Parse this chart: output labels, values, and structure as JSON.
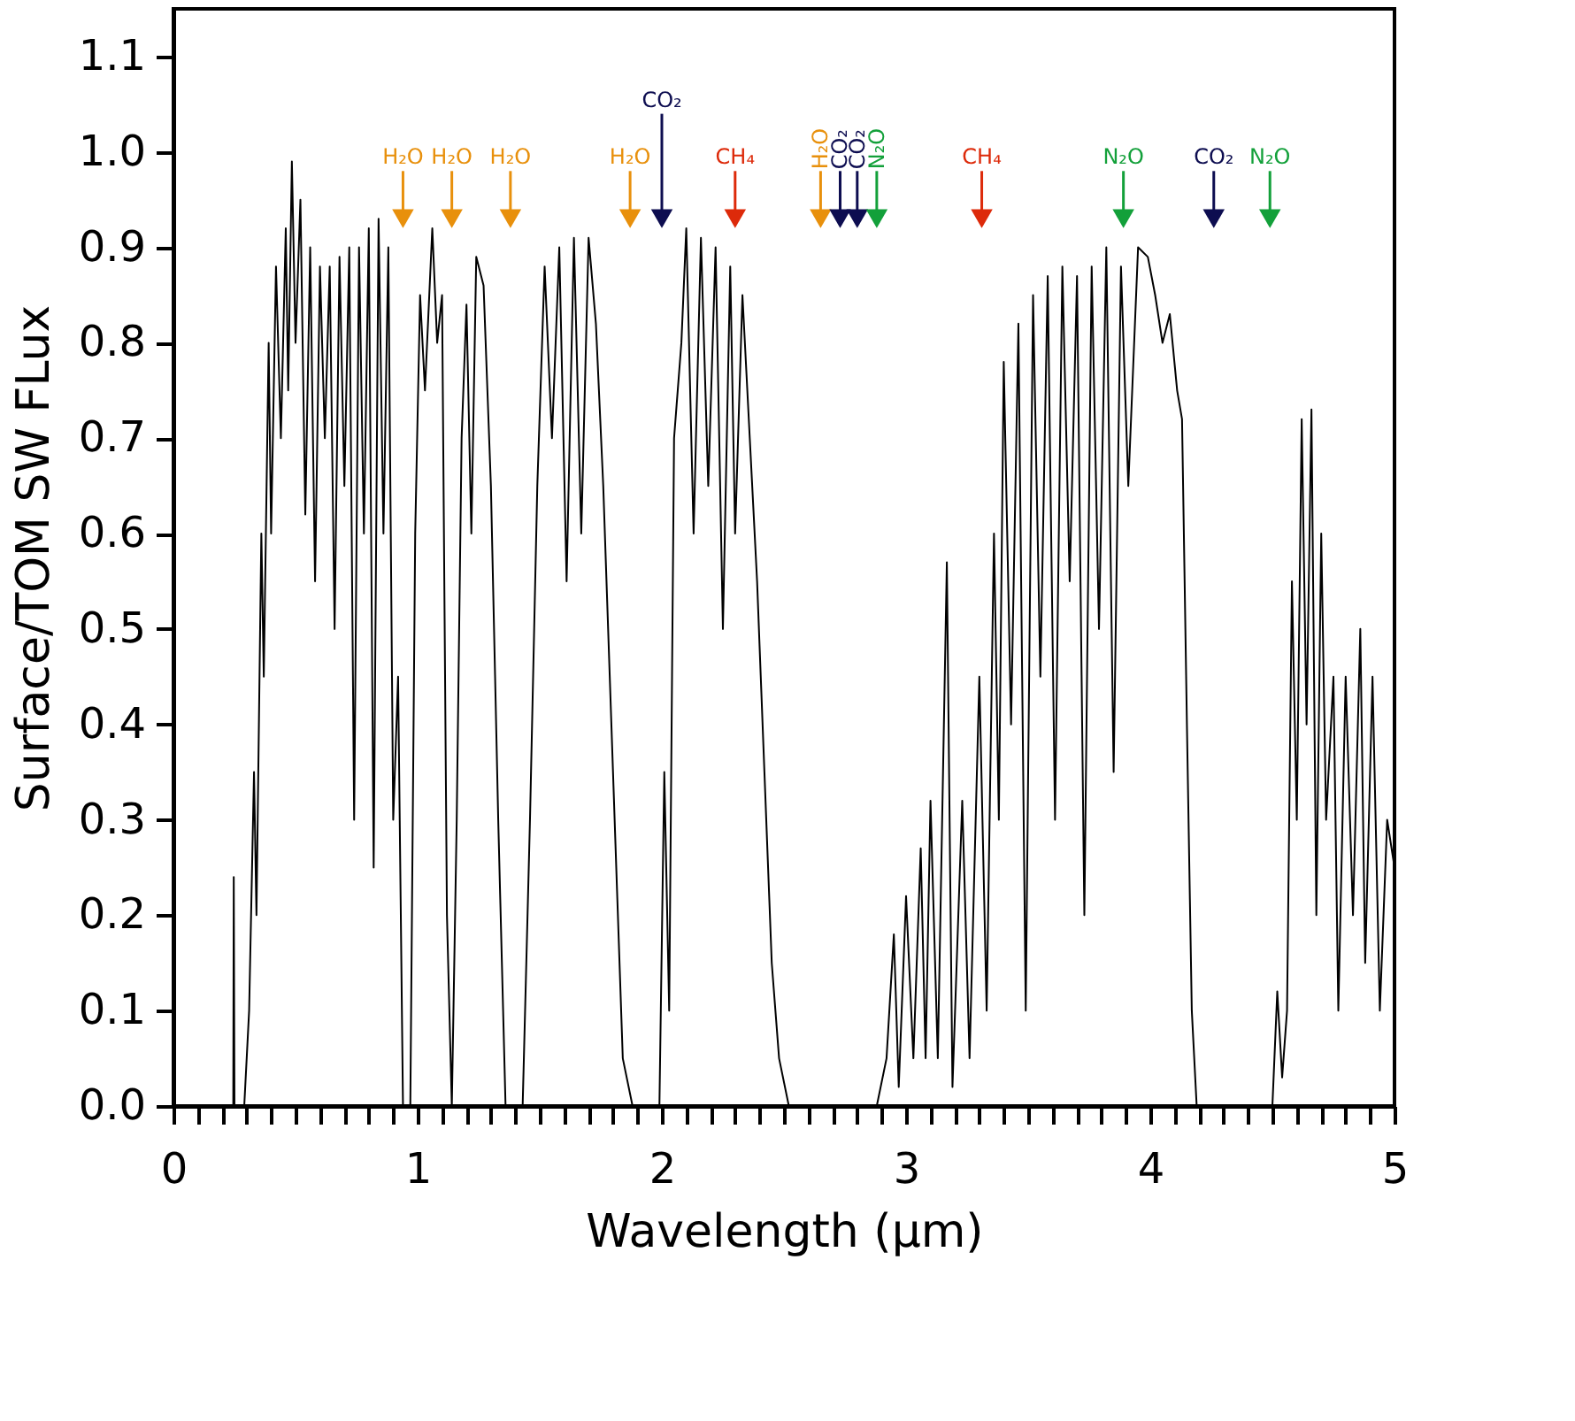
{
  "chart_data": {
    "type": "line",
    "xlabel": "Wavelength (μm)",
    "ylabel": "Surface/TOM SW FLux",
    "xlim": [
      0,
      5
    ],
    "ylim": [
      0,
      1.15
    ],
    "xticks": [
      0,
      {
        "value": 0.1,
        "label": null
      },
      {
        "value": 0.2,
        "label": null
      },
      {
        "value": 0.3,
        "label": null
      },
      {
        "value": 0.4,
        "label": null
      },
      {
        "value": 0.5,
        "label": null
      },
      {
        "value": 0.6,
        "label": null
      },
      {
        "value": 0.7,
        "label": null
      },
      {
        "value": 0.8,
        "label": null
      },
      {
        "value": 0.9,
        "label": null
      },
      1,
      {
        "value": 1.1,
        "label": null
      },
      {
        "value": 1.2,
        "label": null
      },
      {
        "value": 1.3,
        "label": null
      },
      {
        "value": 1.4,
        "label": null
      },
      {
        "value": 1.5,
        "label": null
      },
      {
        "value": 1.6,
        "label": null
      },
      {
        "value": 1.7,
        "label": null
      },
      {
        "value": 1.8,
        "label": null
      },
      {
        "value": 1.9,
        "label": null
      },
      2,
      {
        "value": 2.1,
        "label": null
      },
      {
        "value": 2.2,
        "label": null
      },
      {
        "value": 2.3,
        "label": null
      },
      {
        "value": 2.4,
        "label": null
      },
      {
        "value": 2.5,
        "label": null
      },
      {
        "value": 2.6,
        "label": null
      },
      {
        "value": 2.7,
        "label": null
      },
      {
        "value": 2.8,
        "label": null
      },
      {
        "value": 2.9,
        "label": null
      },
      3,
      {
        "value": 3.1,
        "label": null
      },
      {
        "value": 3.2,
        "label": null
      },
      {
        "value": 3.3,
        "label": null
      },
      {
        "value": 3.4,
        "label": null
      },
      {
        "value": 3.5,
        "label": null
      },
      {
        "value": 3.6,
        "label": null
      },
      {
        "value": 3.7,
        "label": null
      },
      {
        "value": 3.8,
        "label": null
      },
      {
        "value": 3.9,
        "label": null
      },
      4,
      {
        "value": 4.1,
        "label": null
      },
      {
        "value": 4.2,
        "label": null
      },
      {
        "value": 4.3,
        "label": null
      },
      {
        "value": 4.4,
        "label": null
      },
      {
        "value": 4.5,
        "label": null
      },
      {
        "value": 4.6,
        "label": null
      },
      {
        "value": 4.7,
        "label": null
      },
      {
        "value": 4.8,
        "label": null
      },
      {
        "value": 4.9,
        "label": null
      },
      5
    ],
    "yticks": [
      {
        "value": 0,
        "label": "0.0"
      },
      0.1,
      0.2,
      0.3,
      0.4,
      0.5,
      0.6,
      0.7,
      0.8,
      0.9,
      {
        "value": 1,
        "label": "1.0"
      },
      1.1
    ],
    "grid": false,
    "line_style": "solid",
    "series": [
      {
        "color": "#000000",
        "x": [
          0.2,
          0.245,
          0.247,
          0.25,
          0.29,
          0.31,
          0.33,
          0.34,
          0.36,
          0.37,
          0.39,
          0.4,
          0.42,
          0.44,
          0.46,
          0.47,
          0.485,
          0.5,
          0.52,
          0.54,
          0.56,
          0.58,
          0.6,
          0.62,
          0.64,
          0.66,
          0.68,
          0.7,
          0.72,
          0.74,
          0.76,
          0.78,
          0.8,
          0.82,
          0.84,
          0.86,
          0.88,
          0.9,
          0.92,
          0.94,
          0.97,
          0.99,
          1.01,
          1.03,
          1.06,
          1.08,
          1.1,
          1.12,
          1.14,
          1.16,
          1.18,
          1.2,
          1.22,
          1.24,
          1.27,
          1.3,
          1.33,
          1.36,
          1.43,
          1.46,
          1.49,
          1.52,
          1.55,
          1.58,
          1.61,
          1.64,
          1.67,
          1.7,
          1.73,
          1.76,
          1.8,
          1.84,
          1.88,
          1.99,
          2.01,
          2.03,
          2.05,
          2.08,
          2.1,
          2.13,
          2.16,
          2.19,
          2.22,
          2.25,
          2.28,
          2.3,
          2.33,
          2.36,
          2.39,
          2.42,
          2.45,
          2.48,
          2.52,
          2.88,
          2.92,
          2.95,
          2.97,
          3.0,
          3.03,
          3.06,
          3.08,
          3.1,
          3.13,
          3.167,
          3.19,
          3.23,
          3.26,
          3.3,
          3.33,
          3.36,
          3.38,
          3.4,
          3.43,
          3.46,
          3.49,
          3.52,
          3.55,
          3.58,
          3.61,
          3.64,
          3.67,
          3.7,
          3.73,
          3.76,
          3.79,
          3.82,
          3.85,
          3.88,
          3.91,
          3.95,
          3.99,
          4.02,
          4.05,
          4.08,
          4.11,
          4.13,
          4.15,
          4.17,
          4.19,
          4.5,
          4.52,
          4.54,
          4.56,
          4.58,
          4.6,
          4.62,
          4.64,
          4.66,
          4.68,
          4.7,
          4.72,
          4.75,
          4.77,
          4.8,
          4.83,
          4.86,
          4.88,
          4.91,
          4.94,
          4.97,
          5.0
        ],
        "values": [
          0,
          0,
          0.24,
          0,
          0,
          0.1,
          0.35,
          0.2,
          0.6,
          0.45,
          0.8,
          0.6,
          0.88,
          0.7,
          0.92,
          0.75,
          0.99,
          0.8,
          0.95,
          0.62,
          0.9,
          0.55,
          0.88,
          0.7,
          0.88,
          0.5,
          0.89,
          0.65,
          0.9,
          0.3,
          0.9,
          0.6,
          0.92,
          0.25,
          0.93,
          0.6,
          0.9,
          0.3,
          0.45,
          0,
          0,
          0.6,
          0.85,
          0.75,
          0.92,
          0.8,
          0.85,
          0.2,
          0,
          0.3,
          0.7,
          0.84,
          0.6,
          0.89,
          0.86,
          0.65,
          0.3,
          0,
          0,
          0.3,
          0.65,
          0.88,
          0.7,
          0.9,
          0.55,
          0.91,
          0.6,
          0.91,
          0.82,
          0.65,
          0.35,
          0.05,
          0,
          0,
          0.35,
          0.1,
          0.7,
          0.8,
          0.92,
          0.6,
          0.91,
          0.65,
          0.9,
          0.5,
          0.88,
          0.6,
          0.85,
          0.7,
          0.55,
          0.35,
          0.15,
          0.05,
          0,
          0,
          0.05,
          0.18,
          0.02,
          0.22,
          0.05,
          0.27,
          0.05,
          0.32,
          0.05,
          0.57,
          0.02,
          0.32,
          0.05,
          0.45,
          0.1,
          0.6,
          0.3,
          0.78,
          0.4,
          0.82,
          0.1,
          0.85,
          0.45,
          0.87,
          0.3,
          0.88,
          0.55,
          0.87,
          0.2,
          0.88,
          0.5,
          0.9,
          0.35,
          0.88,
          0.65,
          0.9,
          0.89,
          0.85,
          0.8,
          0.83,
          0.75,
          0.72,
          0.4,
          0.1,
          0,
          0,
          0.12,
          0.03,
          0.1,
          0.55,
          0.3,
          0.72,
          0.4,
          0.73,
          0.2,
          0.6,
          0.3,
          0.45,
          0.1,
          0.45,
          0.2,
          0.5,
          0.15,
          0.45,
          0.1,
          0.3,
          0.25
        ]
      },
      {
        "type": "scatter",
        "name": "H₂O",
        "color": "#e8900c",
        "marker": "triangle",
        "x": [
          0.94,
          1.14,
          1.38,
          1.87,
          2.65
        ],
        "values": [
          0.93,
          0.93,
          0.93,
          0.93,
          0.93
        ]
      },
      {
        "type": "scatter",
        "name": "CO₂",
        "color": "#0d0d50",
        "marker": "triangle",
        "x": [
          2.0,
          2.73,
          2.8,
          4.26
        ],
        "values": [
          0.93,
          0.93,
          0.93,
          0.93
        ]
      },
      {
        "type": "scatter",
        "name": "CH₄",
        "color": "#dd2a0a",
        "marker": "triangle",
        "x": [
          2.3,
          3.31
        ],
        "values": [
          0.93,
          0.93
        ]
      },
      {
        "type": "scatter",
        "name": "N₂O",
        "color": "#13a03a",
        "marker": "triangle",
        "x": [
          2.88,
          3.89,
          4.49
        ],
        "values": [
          0.93,
          0.93,
          0.93
        ]
      }
    ]
  }
}
